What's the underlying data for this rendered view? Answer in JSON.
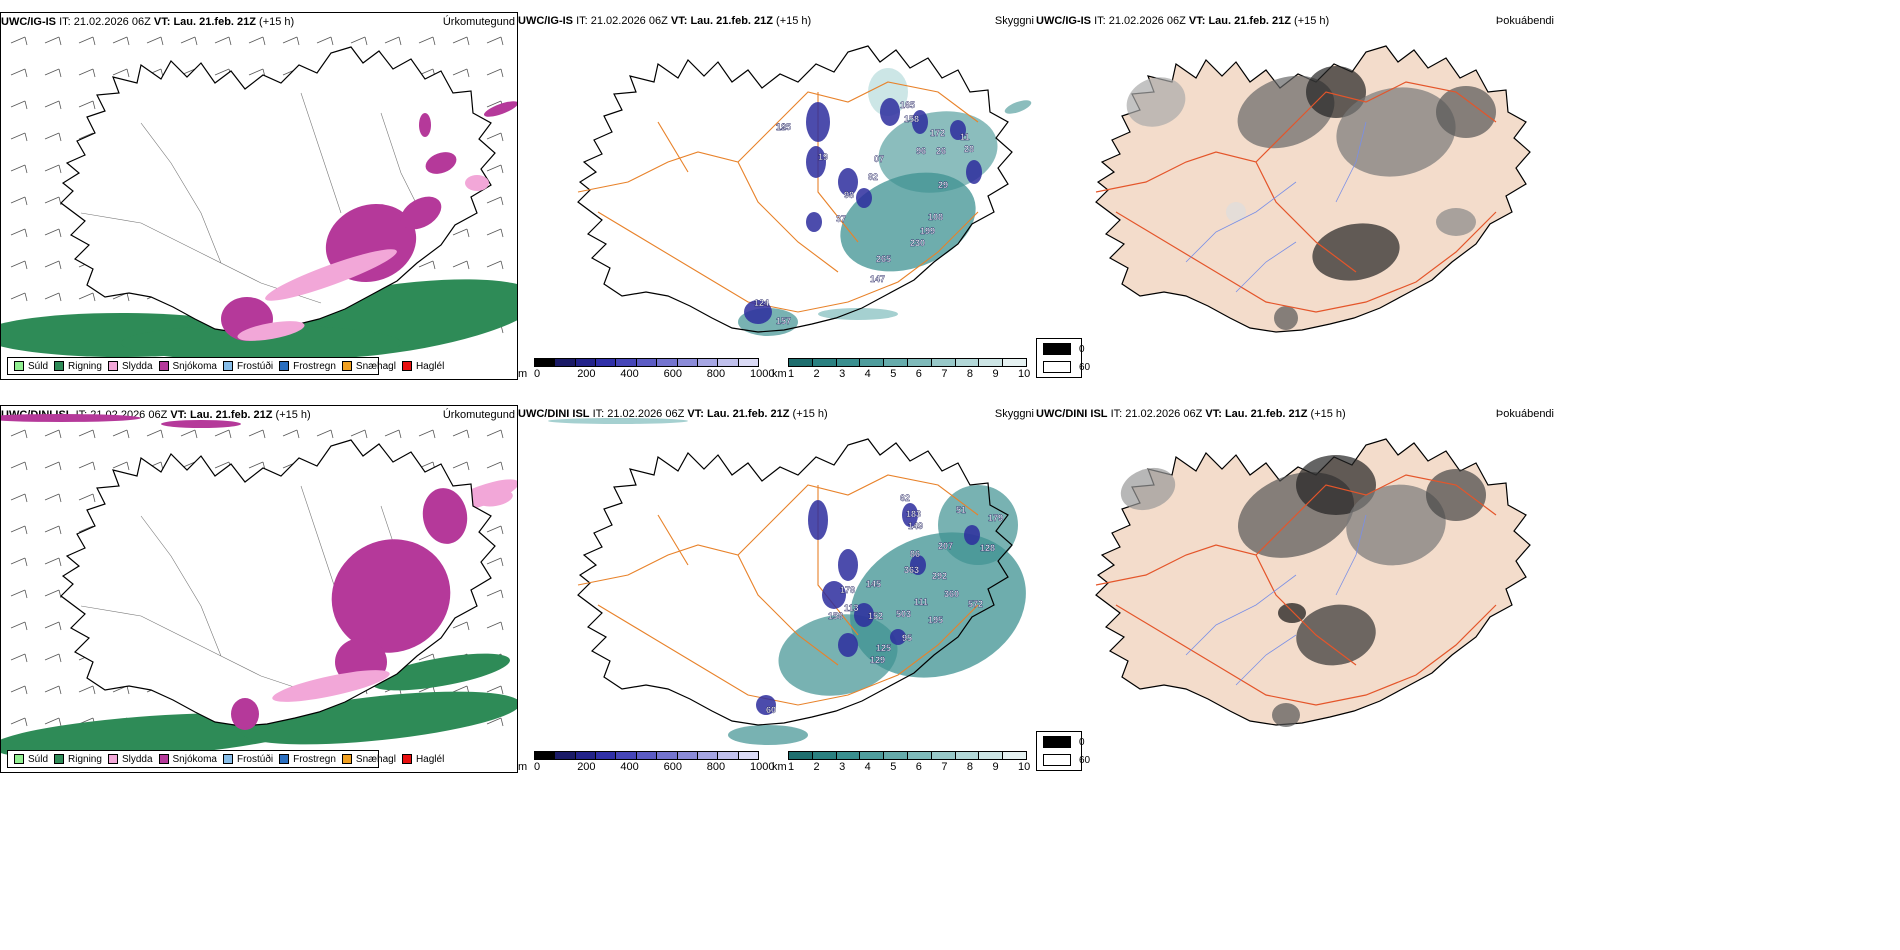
{
  "rows": [
    {
      "model": "UWC/IG-IS",
      "it_label": "IT:",
      "it_value": "21.02.2026 06Z",
      "vt_label": "VT:",
      "vt_value": "Lau. 21.feb. 21Z",
      "lead": "(+15 h)",
      "titles": [
        "Úrkomutegund",
        "Skyggni",
        "Þokuábendi"
      ],
      "visibility_labels": [
        "12",
        "19",
        "07",
        "82",
        "98",
        "37",
        "165",
        "158",
        "172",
        "96",
        "26",
        "28",
        "11",
        "29",
        "108",
        "199",
        "230",
        "265",
        "147",
        "124",
        "157",
        "195"
      ]
    },
    {
      "model": "UWC/DINI ISL",
      "it_label": "IT:",
      "it_value": "21.02.2026 06Z",
      "vt_label": "VT:",
      "vt_value": "Lau. 21.feb. 21Z",
      "lead": "(+15 h)",
      "titles": [
        "Úrkomutegund",
        "Skyggni",
        "Þokuábendi"
      ],
      "visibility_labels": [
        "62",
        "183",
        "149",
        "51",
        "179",
        "128",
        "86",
        "207",
        "292",
        "363",
        "360",
        "111",
        "572",
        "195",
        "503",
        "152",
        "145",
        "178",
        "113",
        "158",
        "95",
        "125",
        "129",
        "60"
      ]
    }
  ],
  "precip_legend": [
    {
      "label": "Súld",
      "color": "#90ee90"
    },
    {
      "label": "Rigning",
      "color": "#2e8b57"
    },
    {
      "label": "Slydda",
      "color": "#f2a7d8"
    },
    {
      "label": "Snjókoma",
      "color": "#b5399a"
    },
    {
      "label": "Frostúði",
      "color": "#87bde8"
    },
    {
      "label": "Frostregn",
      "color": "#2a6fc0"
    },
    {
      "label": "Snæhagl",
      "color": "#f0a020"
    },
    {
      "label": "Haglél",
      "color": "#e81010"
    }
  ],
  "ceiling_colorbar": {
    "unit": "m",
    "ticks": [
      "0",
      "200",
      "400",
      "600",
      "800",
      "1000"
    ],
    "colors": [
      "#000000",
      "#1a1a66",
      "#23238a",
      "#3030a8",
      "#4646b8",
      "#5c5cc4",
      "#7474cf",
      "#8c8cd9",
      "#a6a6e3",
      "#c0c0ec",
      "#dadaf5"
    ]
  },
  "visibility_colorbar": {
    "unit": "km",
    "ticks": [
      "1",
      "2",
      "3",
      "4",
      "5",
      "6",
      "7",
      "8",
      "9",
      "10"
    ],
    "colors": [
      "#1e6e6e",
      "#2a8080",
      "#3a8f8f",
      "#4f9d9d",
      "#66abab",
      "#7fbaba",
      "#98c8c8",
      "#b2d7d7",
      "#cde5e5",
      "#e6f2f2"
    ]
  },
  "fog_legend": [
    {
      "label": "0",
      "color": "#000000"
    },
    {
      "label": "60",
      "color": "#ffffff"
    }
  ],
  "colors": {
    "snow": "#b5399a",
    "sleet": "#f2a7d8",
    "rain": "#2e8b57",
    "roads": "#e8822a",
    "land_fog": "#f3dccb",
    "ceiling_blue": "#2d2d9e",
    "vis_teal": "#3e9191"
  }
}
